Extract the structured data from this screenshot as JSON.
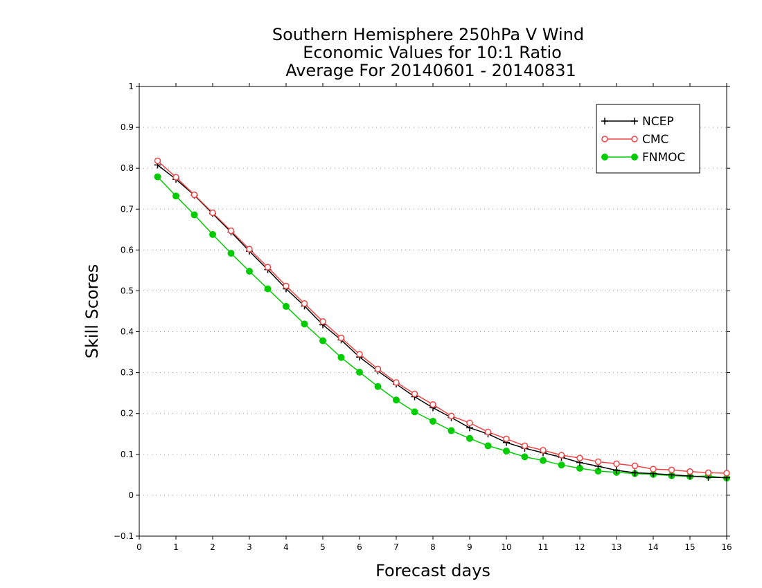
{
  "chart_data": {
    "type": "line",
    "title": [
      "Southern Hemisphere 250hPa V Wind",
      "Economic Values for 10:1 Ratio",
      "Average For 20140601 - 20140831"
    ],
    "xlabel": "Forecast days",
    "ylabel": "Skill Scores",
    "xlim": [
      0,
      16
    ],
    "ylim": [
      -0.1,
      1
    ],
    "xticks": [
      "0",
      "1",
      "2",
      "3",
      "4",
      "5",
      "6",
      "7",
      "8",
      "9",
      "10",
      "11",
      "12",
      "13",
      "14",
      "15",
      "16"
    ],
    "yticks": [
      "-0.1",
      "0",
      "0.1",
      "0.2",
      "0.3",
      "0.4",
      "0.5",
      "0.6",
      "0.7",
      "0.8",
      "0.9",
      "1"
    ],
    "grid": true,
    "legend_position": "top-right",
    "x": [
      0.5,
      1,
      1.5,
      2,
      2.5,
      3,
      3.5,
      4,
      4.5,
      5,
      5.5,
      6,
      6.5,
      7,
      7.5,
      8,
      8.5,
      9,
      9.5,
      10,
      10.5,
      11,
      11.5,
      12,
      12.5,
      13,
      13.5,
      14,
      14.5,
      15,
      15.5,
      16
    ],
    "series": [
      {
        "name": "NCEP",
        "color": "#000000",
        "marker": "plus",
        "values": [
          0.808,
          0.773,
          0.734,
          0.689,
          0.644,
          0.597,
          0.552,
          0.505,
          0.463,
          0.417,
          0.38,
          0.338,
          0.304,
          0.272,
          0.241,
          0.214,
          0.19,
          0.165,
          0.15,
          0.129,
          0.115,
          0.104,
          0.093,
          0.08,
          0.071,
          0.061,
          0.055,
          0.053,
          0.05,
          0.047,
          0.044,
          0.043
        ]
      },
      {
        "name": "CMC",
        "color": "#ef4444",
        "marker": "open-circle",
        "values": [
          0.818,
          0.778,
          0.735,
          0.691,
          0.647,
          0.602,
          0.558,
          0.512,
          0.469,
          0.425,
          0.385,
          0.345,
          0.309,
          0.276,
          0.248,
          0.222,
          0.194,
          0.177,
          0.155,
          0.138,
          0.121,
          0.11,
          0.098,
          0.091,
          0.082,
          0.077,
          0.072,
          0.064,
          0.062,
          0.058,
          0.055,
          0.054
        ]
      },
      {
        "name": "FNMOC",
        "color": "#00cc00",
        "marker": "filled-circle",
        "values": [
          0.779,
          0.732,
          0.686,
          0.638,
          0.592,
          0.548,
          0.505,
          0.462,
          0.419,
          0.378,
          0.337,
          0.301,
          0.266,
          0.233,
          0.204,
          0.181,
          0.158,
          0.139,
          0.121,
          0.108,
          0.094,
          0.085,
          0.074,
          0.066,
          0.059,
          0.056,
          0.053,
          0.051,
          0.048,
          0.046,
          0.047,
          0.042
        ]
      }
    ]
  }
}
